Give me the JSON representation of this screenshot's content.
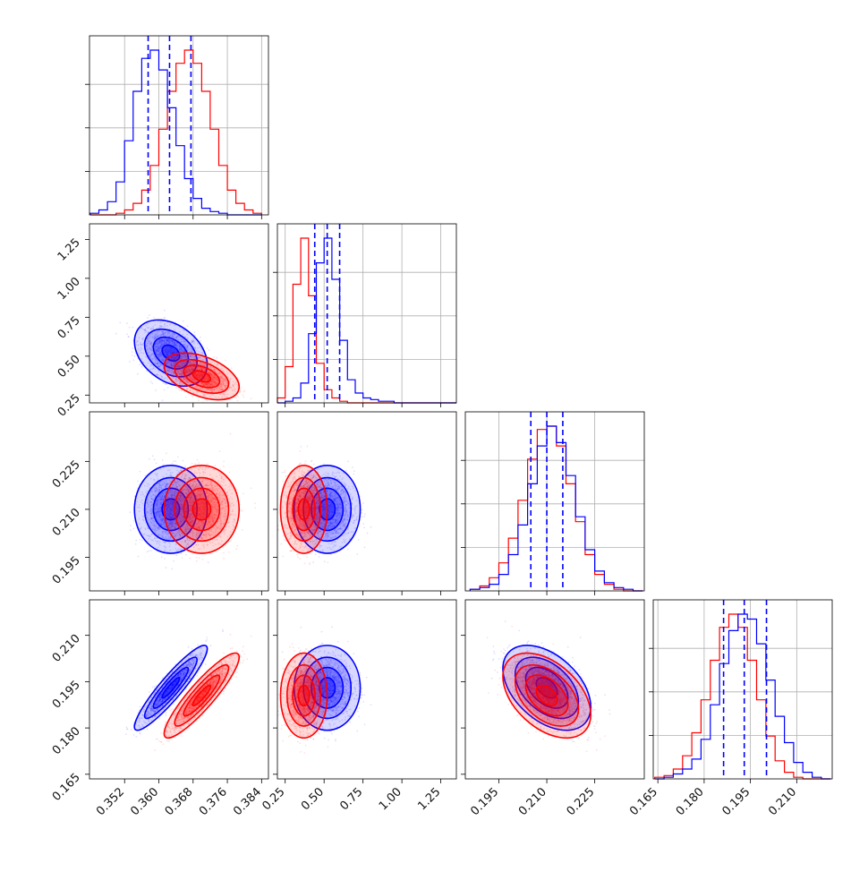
{
  "chart_data": {
    "type": "corner",
    "series": [
      {
        "name": "",
        "color": "#0000ff"
      },
      {
        "name": "",
        "color": "#ff0000"
      }
    ],
    "parameters": [
      {
        "range": [
          0.3438,
          0.3856
        ],
        "ticks": [
          0.352,
          0.36,
          0.368,
          0.376,
          0.384
        ],
        "tick_labels": [
          "0.352",
          "0.360",
          "0.368",
          "0.376",
          "0.384"
        ]
      },
      {
        "range": [
          0.2,
          1.35
        ],
        "ticks": [
          0.25,
          0.5,
          0.75,
          1.0,
          1.25
        ],
        "tick_labels": [
          "0.25",
          "0.50",
          "0.75",
          "1.00",
          "1.25"
        ]
      },
      {
        "range": [
          0.1845,
          0.2405
        ],
        "ticks": [
          0.195,
          0.21,
          0.225
        ],
        "tick_labels": [
          "0.195",
          "0.210",
          "0.225"
        ]
      },
      {
        "range": [
          0.1635,
          0.2215
        ],
        "ticks": [
          0.165,
          0.18,
          0.195,
          0.21
        ],
        "tick_labels": [
          "0.165",
          "0.180",
          "0.195",
          "0.210"
        ]
      }
    ],
    "blue": {
      "means": [
        0.3628,
        0.52,
        0.21,
        0.193
      ],
      "sds": [
        0.0034,
        0.085,
        0.0055,
        0.0055
      ],
      "quantiles": [
        [
          0.3575,
          0.3625,
          0.3675
        ],
        [
          0.44,
          0.52,
          0.6
        ],
        [
          0.205,
          0.21,
          0.215
        ],
        [
          0.1863,
          0.193,
          0.2002
        ]
      ],
      "correlations": {
        "0-1": -0.35,
        "0-2": 0.0,
        "0-3": 0.92,
        "1-2": 0.0,
        "1-3": 0.0,
        "2-3": -0.45
      }
    },
    "red": {
      "means": [
        0.37,
        0.37,
        0.21,
        0.1905
      ],
      "sds": [
        0.0035,
        0.06,
        0.0055,
        0.0055
      ],
      "correlations": {
        "0-1": -0.45,
        "0-2": 0.0,
        "0-3": 0.9,
        "1-2": 0.0,
        "1-3": 0.0,
        "2-3": -0.45
      }
    },
    "histograms": {
      "p0": {
        "edges": [
          0.344,
          0.346,
          0.348,
          0.35,
          0.352,
          0.354,
          0.356,
          0.358,
          0.36,
          0.362,
          0.364,
          0.366,
          0.368,
          0.37,
          0.372,
          0.374,
          0.376,
          0.378,
          0.38,
          0.382,
          0.384
        ],
        "blue": [
          1,
          3,
          8,
          20,
          45,
          75,
          95,
          100,
          88,
          65,
          42,
          22,
          10,
          4,
          2,
          1,
          0,
          0,
          0,
          0
        ],
        "red": [
          0,
          0,
          0,
          1,
          3,
          7,
          15,
          30,
          52,
          75,
          92,
          100,
          92,
          75,
          52,
          30,
          15,
          7,
          3,
          1
        ]
      },
      "p1": {
        "edges": [
          0.2,
          0.25,
          0.3,
          0.35,
          0.4,
          0.45,
          0.5,
          0.55,
          0.6,
          0.65,
          0.7,
          0.75,
          0.8,
          0.85,
          0.9,
          0.95,
          1.0,
          1.05,
          1.1,
          1.15,
          1.2,
          1.25,
          1.3,
          1.35
        ],
        "blue": [
          0,
          1,
          3,
          12,
          42,
          85,
          100,
          75,
          38,
          14,
          6,
          3,
          2,
          1,
          1,
          0,
          0,
          0,
          0,
          0,
          0,
          0,
          0
        ],
        "red": [
          3,
          22,
          72,
          100,
          65,
          24,
          8,
          3,
          1,
          0,
          0,
          0,
          0,
          0,
          0,
          0,
          0,
          0,
          0,
          0,
          0,
          0,
          0
        ]
      },
      "p2": {
        "edges": [
          0.186,
          0.189,
          0.192,
          0.195,
          0.198,
          0.201,
          0.204,
          0.207,
          0.21,
          0.213,
          0.216,
          0.219,
          0.222,
          0.225,
          0.228,
          0.231,
          0.234,
          0.237,
          0.24
        ],
        "blue": [
          1,
          2,
          4,
          10,
          22,
          40,
          65,
          88,
          100,
          90,
          70,
          45,
          25,
          12,
          5,
          2,
          1,
          0
        ],
        "red": [
          1,
          3,
          8,
          17,
          32,
          55,
          80,
          98,
          100,
          88,
          65,
          42,
          22,
          10,
          4,
          1,
          0,
          0
        ]
      },
      "p3": {
        "edges": [
          0.164,
          0.167,
          0.17,
          0.173,
          0.176,
          0.179,
          0.182,
          0.185,
          0.188,
          0.191,
          0.194,
          0.197,
          0.2,
          0.203,
          0.206,
          0.209,
          0.212,
          0.215,
          0.218,
          0.221
        ],
        "blue": [
          0,
          1,
          3,
          6,
          12,
          24,
          45,
          70,
          90,
          100,
          97,
          82,
          60,
          38,
          22,
          10,
          4,
          1,
          0
        ],
        "red": [
          1,
          2,
          6,
          14,
          28,
          48,
          72,
          92,
          100,
          92,
          72,
          48,
          26,
          11,
          4,
          1,
          0,
          0,
          0
        ]
      }
    },
    "dashed_quantiles": "series 0",
    "grid": true,
    "hist_y_tick_fractions": [
      0.27,
      0.54,
      0.81
    ]
  }
}
